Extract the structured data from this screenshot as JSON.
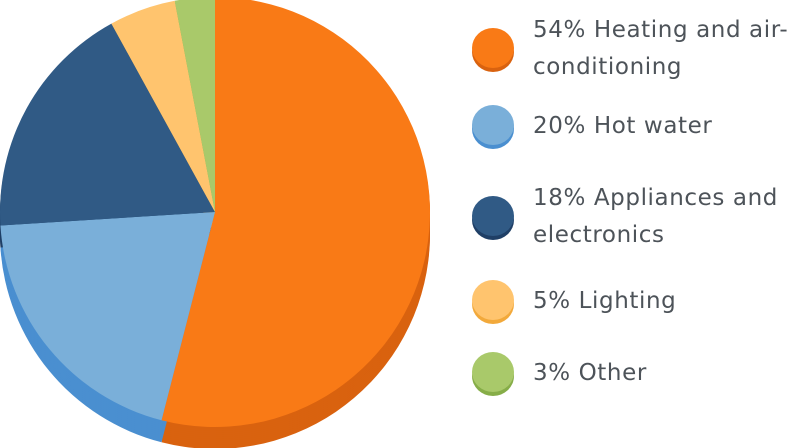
{
  "chart_data": {
    "type": "pie",
    "categories": [
      "Heating and air-conditioning",
      "Hot water",
      "Appliances and electronics",
      "Lighting",
      "Other"
    ],
    "values": [
      54,
      20,
      18,
      5,
      3
    ],
    "colors": [
      "#f97a16",
      "#7aafd9",
      "#305a85",
      "#ffc46e",
      "#a9c96a"
    ],
    "shade_colors": [
      "#d9620f",
      "#4a8fd0",
      "#1f3f66",
      "#f2a93b",
      "#86ad48"
    ],
    "legend": [
      {
        "label": "54% Heating and air-conditioning"
      },
      {
        "label": "20% Hot water"
      },
      {
        "label": "18% Appliances and electronics"
      },
      {
        "label": "5% Lighting"
      },
      {
        "label": "3% Other"
      }
    ],
    "legend_placement": "right",
    "title": "",
    "style": "3d"
  }
}
